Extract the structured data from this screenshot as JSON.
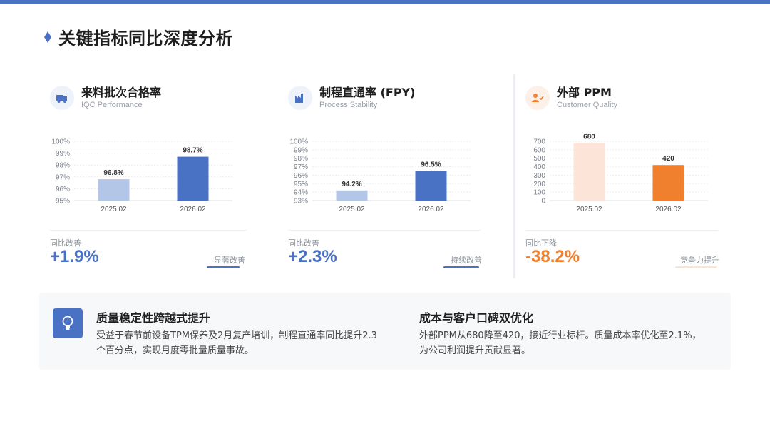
{
  "header": {
    "title": "关键指标同比深度分析",
    "accent_color": "#4a72c4"
  },
  "cards": [
    {
      "icon": "truck-icon",
      "title": "来料批次合格率",
      "subtitle": "IQC Performance",
      "delta_label": "同比改善",
      "delta_value": "+1.9%",
      "tag": "显著改善",
      "accent": "#4a72c4",
      "chart_data": {
        "type": "bar",
        "categories": [
          "2025.02",
          "2026.02"
        ],
        "values": [
          96.8,
          98.7
        ],
        "value_labels": [
          "96.8%",
          "98.7%"
        ],
        "bar_colors": [
          "#b4c6e8",
          "#4a72c4"
        ],
        "ylim": [
          95,
          100
        ],
        "yticks": [
          "95%",
          "96%",
          "97%",
          "98%",
          "99%",
          "100%"
        ],
        "ytick_values": [
          95,
          96,
          97,
          98,
          99,
          100
        ],
        "grid": true
      }
    },
    {
      "icon": "factory-icon",
      "title": "制程直通率 (FPY)",
      "subtitle": "Process Stability",
      "delta_label": "同比改善",
      "delta_value": "+2.3%",
      "tag": "持续改善",
      "accent": "#4a72c4",
      "chart_data": {
        "type": "bar",
        "categories": [
          "2025.02",
          "2026.02"
        ],
        "values": [
          94.2,
          96.5
        ],
        "value_labels": [
          "94.2%",
          "96.5%"
        ],
        "bar_colors": [
          "#b4c6e8",
          "#4a72c4"
        ],
        "ylim": [
          93,
          100
        ],
        "yticks": [
          "93%",
          "94%",
          "95%",
          "96%",
          "97%",
          "98%",
          "99%",
          "100%"
        ],
        "ytick_values": [
          93,
          94,
          95,
          96,
          97,
          98,
          99,
          100
        ],
        "grid": true
      }
    },
    {
      "icon": "user-check-icon",
      "title": "外部 PPM",
      "subtitle": "Customer Quality",
      "delta_label": "同比下降",
      "delta_value": "-38.2%",
      "tag": "竞争力提升",
      "accent": "#f07f2e",
      "chart_data": {
        "type": "bar",
        "categories": [
          "2025.02",
          "2026.02"
        ],
        "values": [
          680,
          420
        ],
        "value_labels": [
          "680",
          "420"
        ],
        "bar_colors": [
          "#fde4d8",
          "#f07f2e"
        ],
        "ylim": [
          0,
          700
        ],
        "yticks": [
          "0",
          "100",
          "200",
          "300",
          "400",
          "500",
          "600",
          "700"
        ],
        "ytick_values": [
          0,
          100,
          200,
          300,
          400,
          500,
          600,
          700
        ],
        "grid": true
      }
    }
  ],
  "insights": {
    "icon": "lightbulb-icon",
    "left": {
      "title": "质量稳定性跨越式提升",
      "line1": "受益于春节前设备TPM保养及2月复产培训，制程直通率同比提升2.3",
      "line2": "个百分点，实现月度零批量质量事故。"
    },
    "right": {
      "title": "成本与客户口碑双优化",
      "line1": "外部PPM从680降至420，接近行业标杆。质量成本率优化至2.1%，",
      "line2": "为公司利润提升贡献显著。"
    }
  }
}
